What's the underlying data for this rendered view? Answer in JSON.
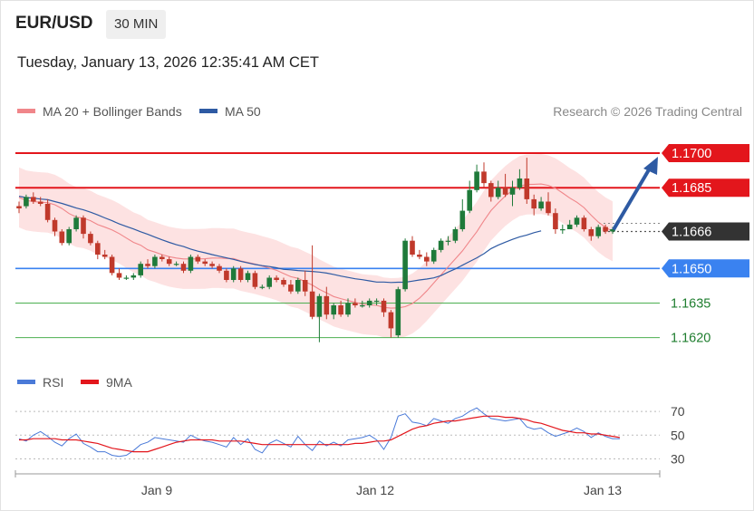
{
  "header": {
    "symbol": "EUR/USD",
    "timeframe": "30 MIN",
    "datetime": "Tuesday, January 13, 2026 12:35:41 AM CET"
  },
  "legend": {
    "ma20_label": "MA 20 + Bollinger Bands",
    "ma50_label": "MA 50",
    "credit": "Research © 2026 Trading Central",
    "rsi_label": "RSI",
    "rsi_ma_label": "9MA"
  },
  "colors": {
    "up": "#1f7a3a",
    "down": "#c0392b",
    "resistance": "#e3161c",
    "pivot": "#3a82f0",
    "support": "#4caf50",
    "ma20": "#f0868a",
    "ma50": "#2e5aa3",
    "bands_fill": "#fde2e2",
    "current": "#333333",
    "rsi": "#4a7ad8",
    "rsi_ma": "#e3161c"
  },
  "chart_data": [
    {
      "type": "candlestick",
      "title": "EUR/USD 30 MIN",
      "ylim": [
        1.1612,
        1.1711
      ],
      "x_ticks": [
        "Jan 9",
        "Jan 12",
        "Jan 13"
      ],
      "levels": [
        {
          "label": "1.1700",
          "value": 1.17,
          "kind": "resistance"
        },
        {
          "label": "1.1685",
          "value": 1.1685,
          "kind": "resistance"
        },
        {
          "label": "1.1666",
          "value": 1.1666,
          "kind": "current"
        },
        {
          "label": "1.1650",
          "value": 1.165,
          "kind": "pivot"
        },
        {
          "label": "1.1635",
          "value": 1.1635,
          "kind": "support"
        },
        {
          "label": "1.1620",
          "value": 1.162,
          "kind": "support"
        }
      ],
      "series": [
        {
          "name": "MA 20 + Bollinger Bands",
          "values": [
            1.16808,
            1.16795,
            1.1679,
            1.16787,
            1.16785,
            1.16776,
            1.1676,
            1.16738,
            1.16723,
            1.16718,
            1.16707,
            1.1669,
            1.16679,
            1.16667,
            1.16651,
            1.16632,
            1.16613,
            1.16601,
            1.16581,
            1.16571,
            1.1656,
            1.16551,
            1.16545,
            1.16541,
            1.16541,
            1.16541,
            1.16542,
            1.16545,
            1.16545,
            1.16543,
            1.16543,
            1.16533,
            1.16526,
            1.16519,
            1.1651,
            1.16502,
            1.16492,
            1.16478,
            1.16464,
            1.16457,
            1.16442,
            1.16428,
            1.16409,
            1.16394,
            1.16378,
            1.16369,
            1.16361,
            1.16353,
            1.16345,
            1.16342,
            1.1634,
            1.16331,
            1.16328,
            1.16329,
            1.16334,
            1.16348,
            1.16371,
            1.16402,
            1.16437,
            1.16472,
            1.16507,
            1.16541,
            1.16576,
            1.16618,
            1.16659,
            1.16707,
            1.16751,
            1.16784,
            1.16814,
            1.16838,
            1.16857,
            1.16864,
            1.16865,
            1.16866,
            1.1686,
            1.16848,
            1.16827,
            1.16805,
            1.16787,
            1.16764,
            1.16731,
            1.16701,
            1.16678,
            1.16661
          ]
        },
        {
          "name": "MA 50",
          "values": [
            1.16813,
            1.16807,
            1.16805,
            1.16801,
            1.16798,
            1.1679,
            1.16782,
            1.16772,
            1.16762,
            1.16754,
            1.16744,
            1.16732,
            1.16719,
            1.16707,
            1.16693,
            1.16682,
            1.16671,
            1.16659,
            1.16648,
            1.16636,
            1.16624,
            1.16613,
            1.16603,
            1.16595,
            1.16584,
            1.16575,
            1.16568,
            1.1656,
            1.16553,
            1.16546,
            1.16539,
            1.16531,
            1.16524,
            1.16517,
            1.16512,
            1.16508,
            1.16503,
            1.16496,
            1.16494,
            1.16491,
            1.16489,
            1.16487,
            1.16484,
            1.1648,
            1.16474,
            1.16467,
            1.16461,
            1.16455,
            1.16451,
            1.16446,
            1.16441,
            1.16441,
            1.16439,
            1.1644,
            1.1644,
            1.16445,
            1.1645,
            1.16454,
            1.16459,
            1.16469,
            1.16484,
            1.16498,
            1.16514,
            1.1653,
            1.16546,
            1.16564,
            1.16586,
            1.16601,
            1.16614,
            1.16626,
            1.16637,
            1.16645,
            1.16655,
            1.16663
          ]
        }
      ],
      "candles": [
        [
          1.1677,
          1.1676,
          1.1679,
          1.1674
        ],
        [
          1.1677,
          1.1681,
          1.1682,
          1.1676
        ],
        [
          1.1681,
          1.1679,
          1.1683,
          1.1678
        ],
        [
          1.1679,
          1.1678,
          1.1681,
          1.1677
        ],
        [
          1.1678,
          1.1671,
          1.168,
          1.167
        ],
        [
          1.1671,
          1.1666,
          1.1672,
          1.1664
        ],
        [
          1.1666,
          1.1661,
          1.1667,
          1.166
        ],
        [
          1.1661,
          1.1667,
          1.1668,
          1.166
        ],
        [
          1.1667,
          1.1672,
          1.1673,
          1.1666
        ],
        [
          1.1672,
          1.1665,
          1.1673,
          1.1663
        ],
        [
          1.1665,
          1.1661,
          1.1666,
          1.166
        ],
        [
          1.1661,
          1.1656,
          1.1662,
          1.1654
        ],
        [
          1.1656,
          1.1655,
          1.1658,
          1.1654
        ],
        [
          1.1655,
          1.1648,
          1.1656,
          1.1647
        ],
        [
          1.1648,
          1.1646,
          1.165,
          1.1645
        ],
        [
          1.1646,
          1.1646,
          1.1647,
          1.1645
        ],
        [
          1.1646,
          1.1647,
          1.1648,
          1.1645
        ],
        [
          1.1647,
          1.1652,
          1.1653,
          1.1646
        ],
        [
          1.1652,
          1.1651,
          1.1654,
          1.165
        ],
        [
          1.1651,
          1.1655,
          1.1656,
          1.165
        ],
        [
          1.1655,
          1.1654,
          1.1656,
          1.1653
        ],
        [
          1.1654,
          1.1652,
          1.1655,
          1.1651
        ],
        [
          1.1652,
          1.1652,
          1.1653,
          1.1651
        ],
        [
          1.1652,
          1.1649,
          1.1653,
          1.1648
        ],
        [
          1.1649,
          1.1655,
          1.1656,
          1.1648
        ],
        [
          1.1655,
          1.1653,
          1.1656,
          1.1652
        ],
        [
          1.1653,
          1.1652,
          1.1654,
          1.1651
        ],
        [
          1.1652,
          1.1651,
          1.1653,
          1.165
        ],
        [
          1.1651,
          1.1649,
          1.1652,
          1.1648
        ],
        [
          1.1649,
          1.1645,
          1.165,
          1.1644
        ],
        [
          1.1645,
          1.165,
          1.1651,
          1.1644
        ],
        [
          1.165,
          1.1645,
          1.1651,
          1.1644
        ],
        [
          1.1645,
          1.1648,
          1.1649,
          1.1644
        ],
        [
          1.1648,
          1.1642,
          1.1649,
          1.1641
        ],
        [
          1.1642,
          1.1642,
          1.1643,
          1.1641
        ],
        [
          1.1642,
          1.1646,
          1.1647,
          1.1641
        ],
        [
          1.1646,
          1.1645,
          1.1647,
          1.1644
        ],
        [
          1.1645,
          1.1643,
          1.1646,
          1.1642
        ],
        [
          1.1643,
          1.164,
          1.1645,
          1.1639
        ],
        [
          1.164,
          1.1645,
          1.1646,
          1.1639
        ],
        [
          1.1645,
          1.164,
          1.1649,
          1.1638
        ],
        [
          1.164,
          1.1629,
          1.166,
          1.1628
        ],
        [
          1.1629,
          1.1638,
          1.1639,
          1.1618
        ],
        [
          1.1638,
          1.163,
          1.1642,
          1.1628
        ],
        [
          1.163,
          1.1634,
          1.1635,
          1.1628
        ],
        [
          1.1634,
          1.163,
          1.1636,
          1.1629
        ],
        [
          1.163,
          1.1635,
          1.1637,
          1.1629
        ],
        [
          1.1635,
          1.1634,
          1.1637,
          1.1633
        ],
        [
          1.1634,
          1.1634,
          1.1636,
          1.1633
        ],
        [
          1.1634,
          1.1636,
          1.1637,
          1.1633
        ],
        [
          1.1636,
          1.1636,
          1.1637,
          1.1634
        ],
        [
          1.1636,
          1.1631,
          1.1637,
          1.1629
        ],
        [
          1.1631,
          1.1624,
          1.1632,
          1.162
        ],
        [
          1.1621,
          1.1641,
          1.1642,
          1.162
        ],
        [
          1.1641,
          1.1662,
          1.1663,
          1.164
        ],
        [
          1.1662,
          1.1656,
          1.1664,
          1.1655
        ],
        [
          1.1656,
          1.1655,
          1.1658,
          1.1654
        ],
        [
          1.1655,
          1.1653,
          1.1657,
          1.1651
        ],
        [
          1.1653,
          1.1658,
          1.1659,
          1.1652
        ],
        [
          1.1658,
          1.1662,
          1.1663,
          1.1657
        ],
        [
          1.1662,
          1.1662,
          1.1664,
          1.166
        ],
        [
          1.1662,
          1.1667,
          1.1668,
          1.1661
        ],
        [
          1.1667,
          1.1675,
          1.168,
          1.1666
        ],
        [
          1.1675,
          1.1684,
          1.1688,
          1.1674
        ],
        [
          1.1684,
          1.1692,
          1.1695,
          1.1683
        ],
        [
          1.1692,
          1.1687,
          1.1696,
          1.1685
        ],
        [
          1.1687,
          1.1681,
          1.1688,
          1.1679
        ],
        [
          1.1681,
          1.1685,
          1.1688,
          1.168
        ],
        [
          1.1685,
          1.1682,
          1.1691,
          1.1681
        ],
        [
          1.1682,
          1.1685,
          1.1688,
          1.1677
        ],
        [
          1.1685,
          1.1689,
          1.1693,
          1.1684
        ],
        [
          1.1689,
          1.168,
          1.1698,
          1.1678
        ],
        [
          1.168,
          1.1676,
          1.1682,
          1.1673
        ],
        [
          1.1676,
          1.1679,
          1.1681,
          1.1675
        ],
        [
          1.1679,
          1.1674,
          1.1683,
          1.1673
        ],
        [
          1.1674,
          1.1667,
          1.1676,
          1.1665
        ],
        [
          1.1667,
          1.1667,
          1.1669,
          1.1665
        ],
        [
          1.1667,
          1.1669,
          1.1671,
          1.1667
        ],
        [
          1.1669,
          1.1672,
          1.1673,
          1.1668
        ],
        [
          1.1672,
          1.1667,
          1.1673,
          1.1666
        ],
        [
          1.1667,
          1.1664,
          1.1668,
          1.1662
        ],
        [
          1.1664,
          1.1668,
          1.1669,
          1.1663
        ],
        [
          1.1668,
          1.1666,
          1.1669,
          1.1665
        ],
        [
          1.1666,
          1.1667,
          1.1668,
          1.1665
        ]
      ]
    },
    {
      "type": "line",
      "title": "RSI",
      "ylim": [
        25,
        80
      ],
      "y_ticks": [
        "70",
        "50",
        "30"
      ],
      "series": [
        {
          "name": "RSI",
          "values": [
            47,
            45,
            50,
            53,
            49,
            44,
            41,
            47,
            51,
            43,
            40,
            36,
            36,
            33,
            32,
            33,
            37,
            42,
            44,
            48,
            47,
            46,
            45,
            44,
            50,
            47,
            45,
            44,
            42,
            40,
            48,
            42,
            47,
            38,
            35,
            43,
            46,
            43,
            40,
            49,
            42,
            37,
            45,
            41,
            44,
            41,
            46,
            47,
            48,
            50,
            46,
            38,
            48,
            66,
            68,
            61,
            60,
            58,
            64,
            62,
            60,
            64,
            66,
            70,
            73,
            68,
            64,
            63,
            62,
            63,
            64,
            57,
            55,
            56,
            52,
            49,
            51,
            53,
            56,
            53,
            48,
            52,
            49,
            47,
            47
          ]
        },
        {
          "name": "9MA",
          "values": [
            46,
            46,
            47,
            47,
            47,
            47,
            46,
            46,
            46,
            45,
            44,
            43,
            41,
            39,
            38,
            37,
            36,
            36,
            36,
            38,
            40,
            42,
            44,
            45,
            46,
            46,
            46,
            46,
            45,
            45,
            45,
            45,
            44,
            43,
            42,
            42,
            42,
            42,
            42,
            42,
            42,
            42,
            42,
            42,
            42,
            42,
            42,
            43,
            43,
            44,
            45,
            45,
            46,
            49,
            52,
            55,
            57,
            58,
            60,
            61,
            62,
            62,
            63,
            64,
            65,
            66,
            66,
            66,
            65,
            65,
            64,
            63,
            61,
            60,
            58,
            56,
            54,
            53,
            52,
            52,
            51,
            51,
            50,
            49,
            48
          ]
        }
      ]
    }
  ]
}
